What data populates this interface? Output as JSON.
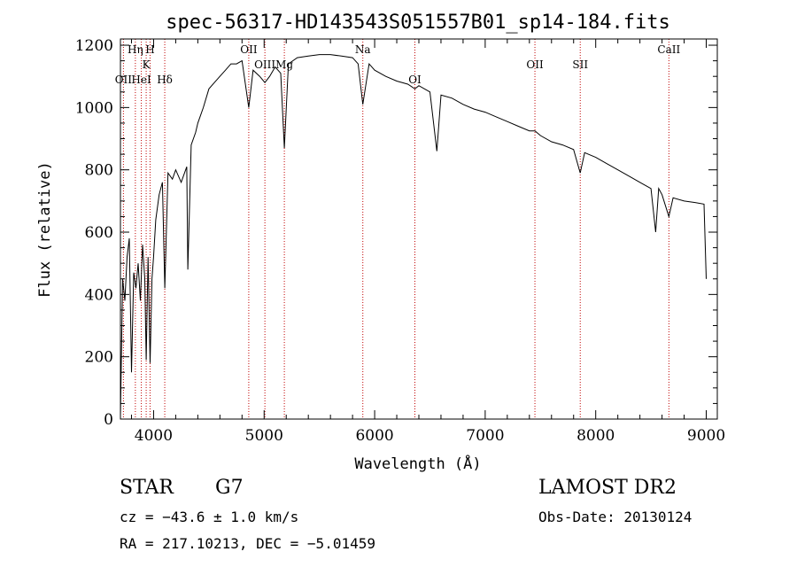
{
  "chart_data": {
    "type": "line",
    "title": "spec-56317-HD143543S051557B01_sp14-184.fits",
    "xlabel": "Wavelength (Å)",
    "ylabel": "Flux (relative)",
    "xlim": [
      3700,
      9100
    ],
    "ylim": [
      0,
      1220
    ],
    "xticks": [
      4000,
      5000,
      6000,
      7000,
      8000,
      9000
    ],
    "yticks": [
      0,
      200,
      400,
      600,
      800,
      1000,
      1200
    ],
    "grid": false,
    "line_color": "#000000",
    "marker_color": "#c00000",
    "series": [
      {
        "x": [
          3700,
          3720,
          3740,
          3760,
          3780,
          3800,
          3820,
          3840,
          3860,
          3880,
          3900,
          3920,
          3933,
          3950,
          3968,
          3985,
          4000,
          4020,
          4050,
          4080,
          4101,
          4130,
          4170,
          4200,
          4250,
          4300,
          4310,
          4340,
          4380,
          4400,
          4450,
          4500,
          4550,
          4600,
          4650,
          4700,
          4750,
          4800,
          4861,
          4900,
          4960,
          5007,
          5050,
          5100,
          5150,
          5183,
          5220,
          5300,
          5400,
          5500,
          5600,
          5700,
          5800,
          5850,
          5893,
          5950,
          6000,
          6100,
          6200,
          6300,
          6364,
          6400,
          6500,
          6563,
          6600,
          6700,
          6800,
          6900,
          7000,
          7100,
          7200,
          7300,
          7400,
          7450,
          7500,
          7600,
          7700,
          7800,
          7860,
          7900,
          8000,
          8100,
          8200,
          8300,
          8400,
          8500,
          8542,
          8570,
          8600,
          8662,
          8700,
          8800,
          8900,
          8980,
          9000
        ],
        "y": [
          10,
          450,
          380,
          520,
          580,
          150,
          470,
          420,
          500,
          380,
          560,
          450,
          190,
          520,
          180,
          450,
          520,
          640,
          720,
          760,
          420,
          790,
          770,
          800,
          760,
          810,
          480,
          880,
          920,
          950,
          1000,
          1060,
          1080,
          1100,
          1120,
          1140,
          1140,
          1150,
          1000,
          1120,
          1100,
          1080,
          1100,
          1130,
          1110,
          870,
          1140,
          1160,
          1165,
          1170,
          1170,
          1165,
          1160,
          1140,
          1010,
          1140,
          1120,
          1100,
          1085,
          1075,
          1060,
          1070,
          1050,
          860,
          1040,
          1030,
          1010,
          995,
          985,
          970,
          955,
          940,
          925,
          925,
          910,
          890,
          880,
          865,
          790,
          855,
          840,
          820,
          800,
          780,
          760,
          740,
          600,
          740,
          720,
          650,
          710,
          700,
          695,
          690,
          450
        ]
      }
    ],
    "lines": [
      {
        "x": 3727,
        "label": "OII",
        "row": 2
      },
      {
        "x": 3835,
        "label": "Hη",
        "row": 0
      },
      {
        "x": 3889,
        "label": "HeI",
        "row": 2
      },
      {
        "x": 3933,
        "label": "K",
        "row": 1
      },
      {
        "x": 3968,
        "label": "H",
        "row": 0
      },
      {
        "x": 4101,
        "label": "Hδ",
        "row": 2
      },
      {
        "x": 4861,
        "label": "OII",
        "row": 0
      },
      {
        "x": 5007,
        "label": "OIII",
        "row": 1
      },
      {
        "x": 5183,
        "label": "Mg",
        "row": 1
      },
      {
        "x": 5893,
        "label": "Na",
        "row": 0
      },
      {
        "x": 6364,
        "label": "OI",
        "row": 2
      },
      {
        "x": 7450,
        "label": "OII",
        "row": 1
      },
      {
        "x": 7860,
        "label": "SII",
        "row": 1
      },
      {
        "x": 8662,
        "label": "CaII",
        "row": 0
      }
    ]
  },
  "info": {
    "object_type": "STAR",
    "subclass": "G7",
    "survey": "LAMOST DR2",
    "cz": "cz = −43.6 ± 1.0 km/s",
    "obs_date": "Obs-Date: 20130124",
    "coords": "RA = 217.10213, DEC =  −5.01459"
  }
}
